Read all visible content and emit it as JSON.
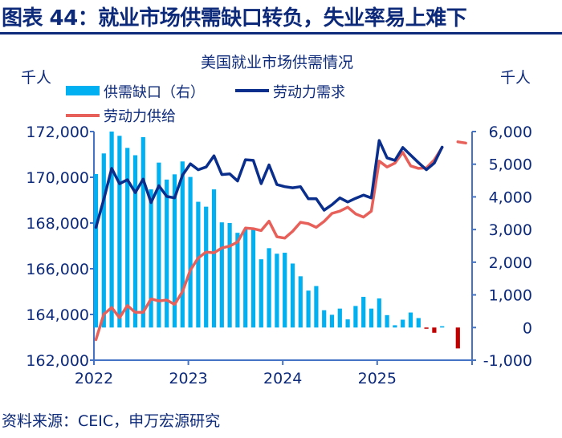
{
  "figure_title": "图表 44：就业市场供需缺口转负，失业率易上难下",
  "source": "资料来源：CEIC，申万宏源研究",
  "chart_data": {
    "type": "bar+line",
    "title": "美国就业市场供需情况",
    "left_unit": "千人",
    "right_unit": "千人",
    "left_ylim": [
      162000,
      172000
    ],
    "right_ylim": [
      -1000,
      6000
    ],
    "left_ticks": [
      "172,000",
      "170,000",
      "168,000",
      "166,000",
      "164,000",
      "162,000"
    ],
    "right_ticks": [
      "6,000",
      "5,000",
      "4,000",
      "3,000",
      "2,000",
      "1,000",
      "0",
      "-1,000"
    ],
    "x_ticks": [
      "2022",
      "2023",
      "2024",
      "2025"
    ],
    "grid": false,
    "legend_position": "top",
    "colors": {
      "gap_positive": "#00b0f0",
      "gap_negative": "#c00000",
      "demand": "#0a2e8c",
      "supply": "#e8605a",
      "axis": "#4472c4"
    },
    "x": [
      "2022-01",
      "2022-02",
      "2022-03",
      "2022-04",
      "2022-05",
      "2022-06",
      "2022-07",
      "2022-08",
      "2022-09",
      "2022-10",
      "2022-11",
      "2022-12",
      "2023-01",
      "2023-02",
      "2023-03",
      "2023-04",
      "2023-05",
      "2023-06",
      "2023-07",
      "2023-08",
      "2023-09",
      "2023-10",
      "2023-11",
      "2023-12",
      "2024-01",
      "2024-02",
      "2024-03",
      "2024-04",
      "2024-05",
      "2024-06",
      "2024-07",
      "2024-08",
      "2024-09",
      "2024-10",
      "2024-11",
      "2024-12",
      "2025-01",
      "2025-02",
      "2025-03",
      "2025-04",
      "2025-05",
      "2025-06",
      "2025-07",
      "2025-08",
      "2025-09",
      "2025-10",
      "2025-11",
      "2025-12"
    ],
    "series": [
      {
        "name": "供需缺口（右）",
        "axis": "right",
        "kind": "bar",
        "values": [
          4700,
          5330,
          6000,
          5870,
          5500,
          5275,
          5830,
          4230,
          5050,
          4530,
          4690,
          5085,
          4610,
          3850,
          3700,
          4230,
          3220,
          3200,
          2900,
          3020,
          3020,
          2090,
          2430,
          2260,
          2290,
          1960,
          1570,
          1130,
          1270,
          530,
          390,
          580,
          250,
          660,
          940,
          580,
          890,
          380,
          70,
          240,
          460,
          290,
          -30,
          -160,
          40,
          null,
          -640,
          null
        ]
      },
      {
        "name": "劳动力需求",
        "axis": "left",
        "kind": "line",
        "values": [
          167810,
          169040,
          170390,
          169720,
          169890,
          169330,
          169920,
          168890,
          169630,
          169160,
          169100,
          170090,
          170590,
          170330,
          170450,
          170940,
          170120,
          170150,
          169840,
          170770,
          170740,
          169720,
          170540,
          169680,
          169590,
          169540,
          169590,
          169060,
          169060,
          168560,
          168800,
          169100,
          168920,
          169080,
          169220,
          169100,
          171610,
          170850,
          170740,
          171300,
          170970,
          170640,
          170330,
          170620,
          171320,
          null,
          null,
          null
        ]
      },
      {
        "name": "劳动力供给",
        "axis": "left",
        "kind": "line",
        "values": [
          162900,
          164010,
          164300,
          163860,
          164390,
          164090,
          164090,
          164680,
          164590,
          164630,
          164440,
          165000,
          165940,
          166470,
          166730,
          166700,
          166910,
          166990,
          167170,
          167780,
          167750,
          167670,
          168080,
          167400,
          167340,
          167640,
          168030,
          167970,
          167810,
          168070,
          168420,
          168520,
          168690,
          168400,
          168260,
          168520,
          170710,
          170450,
          170620,
          171090,
          170500,
          170390,
          170410,
          170760,
          171300,
          null,
          171550,
          171500
        ]
      }
    ]
  }
}
